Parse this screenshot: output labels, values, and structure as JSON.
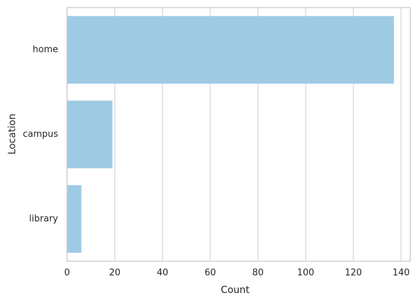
{
  "chart_data": {
    "type": "barh",
    "xlabel": "Count",
    "ylabel": "Location",
    "categories": [
      "home",
      "campus",
      "library"
    ],
    "values": [
      137,
      19,
      6
    ],
    "color": "#9fcae4",
    "xlim": [
      0,
      143.85
    ],
    "xticks": [
      0,
      20,
      40,
      60,
      80,
      100,
      120,
      140
    ],
    "grid": true
  }
}
